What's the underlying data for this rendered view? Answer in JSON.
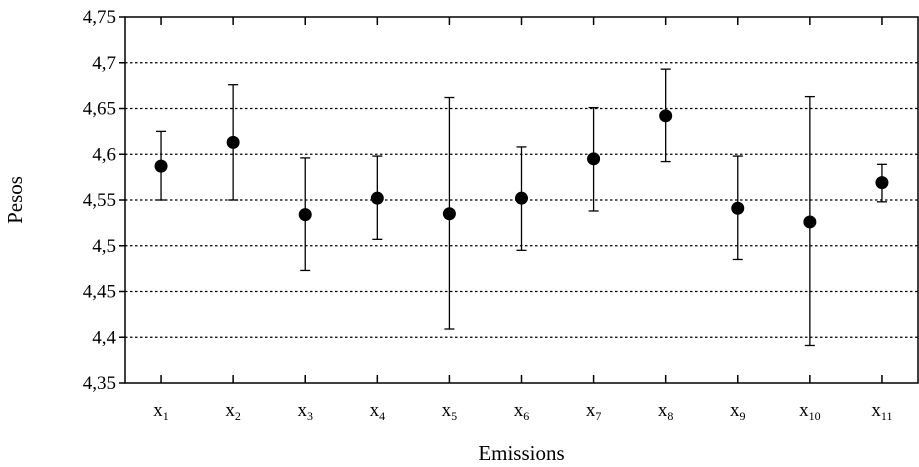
{
  "chart_data": {
    "type": "scatter",
    "xlabel": "Emissions",
    "ylabel": "Pesos",
    "categories": [
      {
        "base": "x",
        "sub": "1"
      },
      {
        "base": "x",
        "sub": "2"
      },
      {
        "base": "x",
        "sub": "3"
      },
      {
        "base": "x",
        "sub": "4"
      },
      {
        "base": "x",
        "sub": "5"
      },
      {
        "base": "x",
        "sub": "6"
      },
      {
        "base": "x",
        "sub": "7"
      },
      {
        "base": "x",
        "sub": "8"
      },
      {
        "base": "x",
        "sub": "9"
      },
      {
        "base": "x",
        "sub": "10"
      },
      {
        "base": "x",
        "sub": "11"
      }
    ],
    "values": [
      4.587,
      4.613,
      4.534,
      4.552,
      4.535,
      4.552,
      4.595,
      4.642,
      4.541,
      4.526,
      4.569
    ],
    "error_low": [
      4.55,
      4.55,
      4.473,
      4.507,
      4.409,
      4.495,
      4.538,
      4.592,
      4.485,
      4.391,
      4.548
    ],
    "error_high": [
      4.625,
      4.676,
      4.596,
      4.598,
      4.662,
      4.608,
      4.651,
      4.693,
      4.598,
      4.663,
      4.589
    ],
    "ylim": [
      4.35,
      4.75
    ],
    "yticks": [
      4.35,
      4.4,
      4.45,
      4.5,
      4.55,
      4.6,
      4.65,
      4.7,
      4.75
    ],
    "ytick_labels": [
      "4,35",
      "4,4",
      "4,45",
      "4,5",
      "4,55",
      "4,6",
      "4,65",
      "4,7",
      "4,75"
    ],
    "grid": true,
    "marker_color": "#000000"
  }
}
